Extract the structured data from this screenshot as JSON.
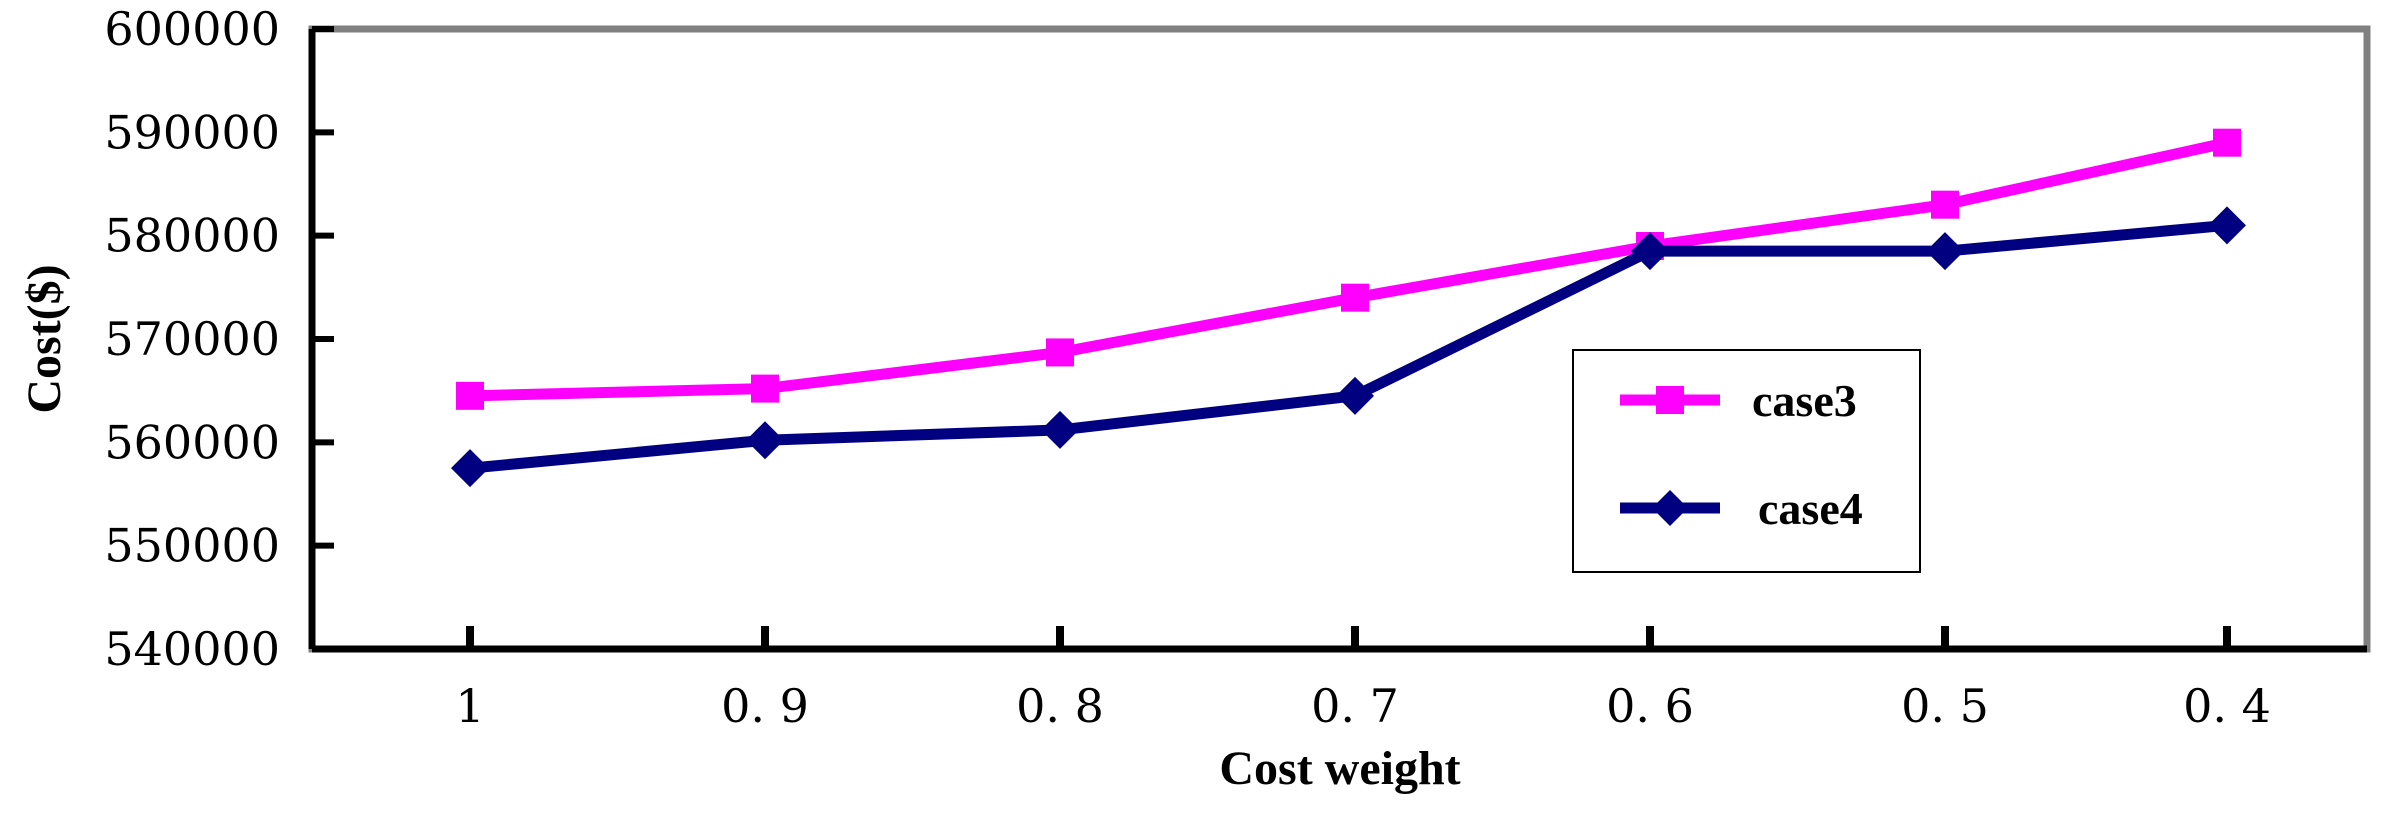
{
  "chart_data": {
    "type": "line",
    "title": "",
    "xlabel": "Cost weight",
    "ylabel": "Cost($)",
    "categories": [
      "1",
      "0.9",
      "0.8",
      "0.7",
      "0.6",
      "0.5",
      "0.4"
    ],
    "ylim": [
      540000,
      600000
    ],
    "yticks": [
      540000,
      550000,
      560000,
      570000,
      580000,
      590000,
      600000
    ],
    "ytick_labels": [
      "540000",
      "550000",
      "560000",
      "570000",
      "580000",
      "590000",
      "600000"
    ],
    "xtick_labels": [
      "1",
      "0. 9",
      "0. 8",
      "0. 7",
      "0. 6",
      "0. 5",
      "0. 4"
    ],
    "grid": false,
    "legend_position": "center-right",
    "series": [
      {
        "name": "case3",
        "color": "#FF00FF",
        "marker": "square",
        "values": [
          564500,
          565200,
          568700,
          574000,
          579000,
          583000,
          589000
        ]
      },
      {
        "name": "case4",
        "color": "#000080",
        "marker": "diamond",
        "values": [
          557500,
          560200,
          561200,
          564500,
          578500,
          578500,
          581000
        ]
      }
    ]
  }
}
